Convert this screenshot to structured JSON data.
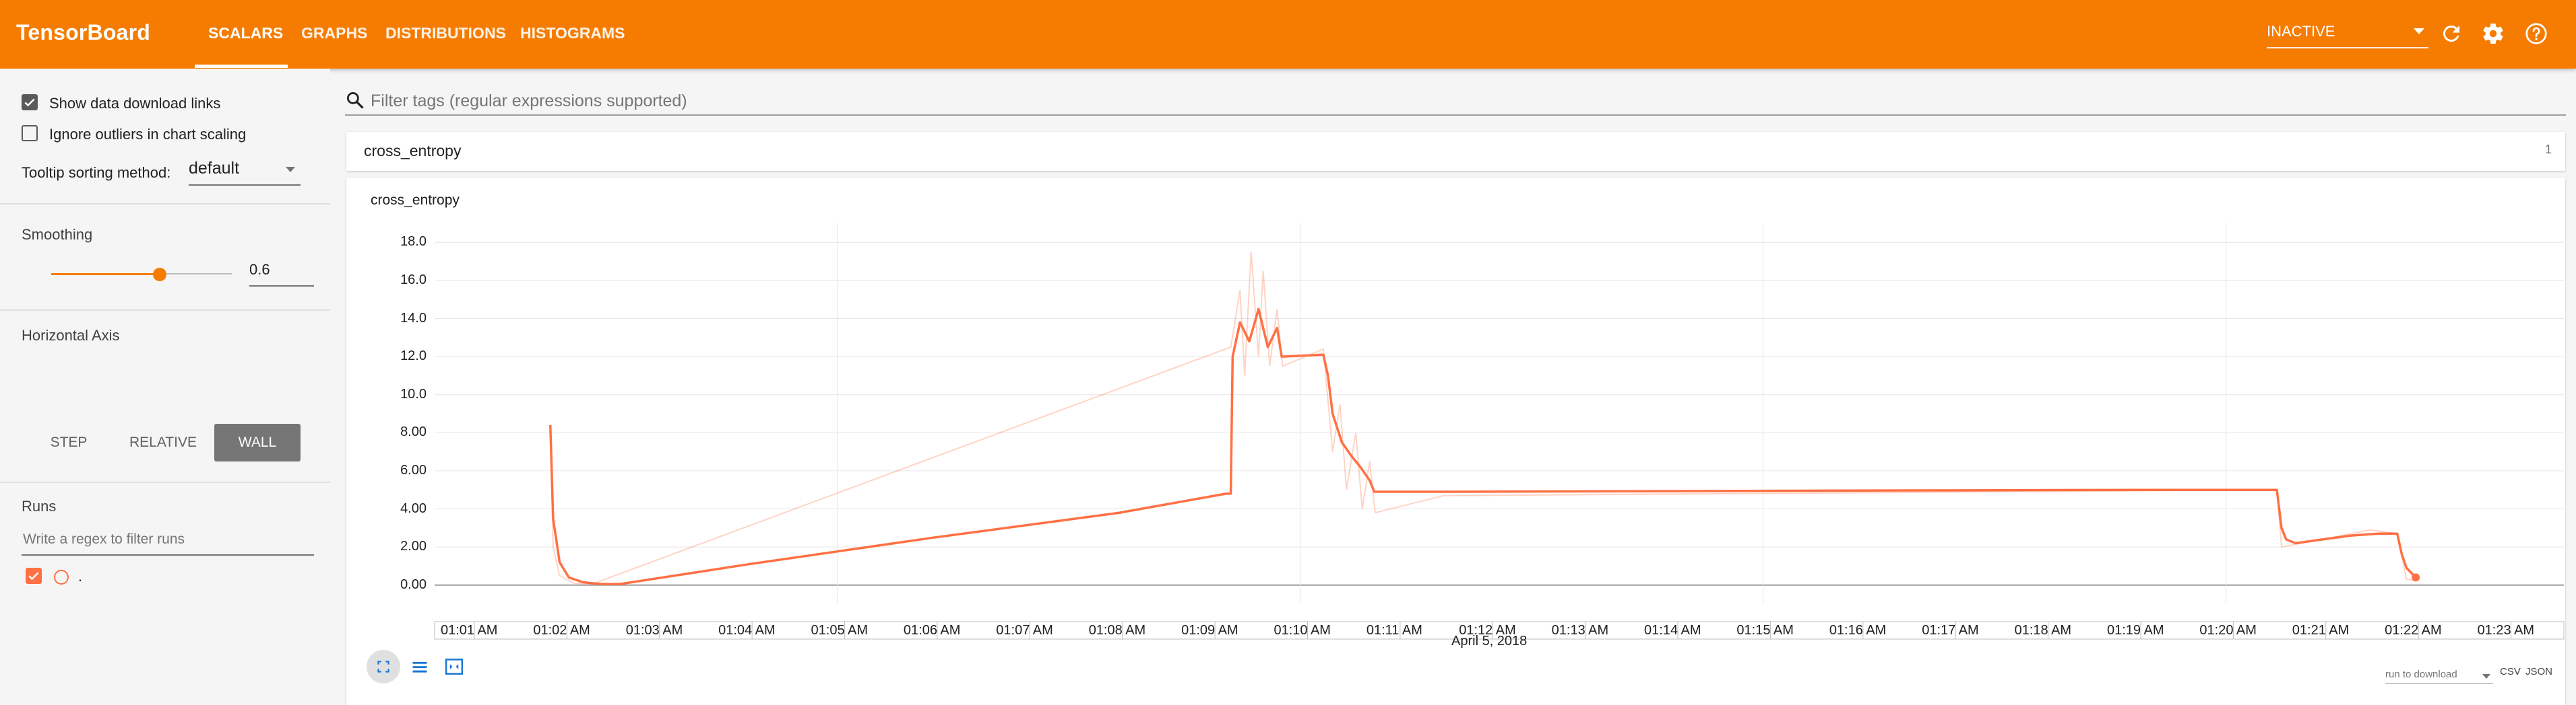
{
  "app": {
    "title": "TensorBoard",
    "tabs": [
      "SCALARS",
      "GRAPHS",
      "DISTRIBUTIONS",
      "HISTOGRAMS"
    ],
    "active_tab": "SCALARS",
    "run_status": "INACTIVE",
    "accent_color": "#f57c00"
  },
  "sidebar": {
    "show_download_links": {
      "label": "Show data download links",
      "checked": true
    },
    "ignore_outliers": {
      "label": "Ignore outliers in chart scaling",
      "checked": false
    },
    "tooltip_sorting": {
      "label": "Tooltip sorting method:",
      "value": "default"
    },
    "smoothing": {
      "title": "Smoothing",
      "value": "0.6",
      "fraction": 0.6
    },
    "horizontal_axis": {
      "title": "Horizontal Axis",
      "options": [
        "STEP",
        "RELATIVE",
        "WALL"
      ],
      "selected": "WALL"
    },
    "runs": {
      "title": "Runs",
      "filter_placeholder": "Write a regex to filter runs",
      "items": [
        {
          "name": ".",
          "checked": true,
          "color": "#ff7043"
        }
      ]
    }
  },
  "main": {
    "filter_placeholder": "Filter tags (regular expressions supported)",
    "category": {
      "name": "cross_entropy",
      "count": "1"
    },
    "card": {
      "title": "cross_entropy",
      "date_label": "April 5, 2018",
      "download": {
        "select_placeholder": "run to download",
        "csv": "CSV",
        "json": "JSON"
      }
    }
  },
  "chart_data": {
    "type": "line",
    "title": "cross_entropy",
    "xlabel": "April 5, 2018",
    "ylabel": "",
    "x_unit": "wall time (minutes after 01:00 AM)",
    "xlim": [
      0.6,
      23.6
    ],
    "ylim": [
      -1.0,
      19.0
    ],
    "x_tick_labels": [
      "01:01 AM",
      "01:02 AM",
      "01:03 AM",
      "01:04 AM",
      "01:05 AM",
      "01:06 AM",
      "01:07 AM",
      "01:08 AM",
      "01:09 AM",
      "01:10 AM",
      "01:11 AM",
      "01:12 AM",
      "01:13 AM",
      "01:14 AM",
      "01:15 AM",
      "01:16 AM",
      "01:17 AM",
      "01:18 AM",
      "01:19 AM",
      "01:20 AM",
      "01:21 AM",
      "01:22 AM",
      "01:23 AM"
    ],
    "x_tick_values": [
      1,
      2,
      3,
      4,
      5,
      6,
      7,
      8,
      9,
      10,
      11,
      12,
      13,
      14,
      15,
      16,
      17,
      18,
      19,
      20,
      21,
      22,
      23
    ],
    "y_tick_labels": [
      "0.00",
      "2.00",
      "4.00",
      "6.00",
      "8.00",
      "10.0",
      "12.0",
      "14.0",
      "16.0",
      "18.0"
    ],
    "y_tick_values": [
      0,
      2,
      4,
      6,
      8,
      10,
      12,
      14,
      16,
      18
    ],
    "grid": true,
    "series": [
      {
        "name": ".",
        "color": "#ff7043",
        "smoothed": [
          [
            1.85,
            8.4
          ],
          [
            1.88,
            3.5
          ],
          [
            1.95,
            1.2
          ],
          [
            2.05,
            0.4
          ],
          [
            2.2,
            0.15
          ],
          [
            2.4,
            0.05
          ],
          [
            2.6,
            0.05
          ],
          [
            4.0,
            1.1
          ],
          [
            6.0,
            2.5
          ],
          [
            8.0,
            3.8
          ],
          [
            9.15,
            4.8
          ],
          [
            9.2,
            4.8
          ],
          [
            9.22,
            12.0
          ],
          [
            9.3,
            13.8
          ],
          [
            9.4,
            12.8
          ],
          [
            9.5,
            14.5
          ],
          [
            9.6,
            12.5
          ],
          [
            9.7,
            13.5
          ],
          [
            9.75,
            12.0
          ],
          [
            10.2,
            12.1
          ],
          [
            10.25,
            11.0
          ],
          [
            10.3,
            9.0
          ],
          [
            10.4,
            7.5
          ],
          [
            10.5,
            6.8
          ],
          [
            10.6,
            6.2
          ],
          [
            10.7,
            5.5
          ],
          [
            10.75,
            4.9
          ],
          [
            11.5,
            4.9
          ],
          [
            15.0,
            4.95
          ],
          [
            19.0,
            5.0
          ],
          [
            20.5,
            5.0
          ],
          [
            20.55,
            3.0
          ],
          [
            20.6,
            2.4
          ],
          [
            20.7,
            2.2
          ],
          [
            21.0,
            2.4
          ],
          [
            21.3,
            2.6
          ],
          [
            21.6,
            2.7
          ],
          [
            21.8,
            2.7
          ],
          [
            21.85,
            1.6
          ],
          [
            21.9,
            0.9
          ],
          [
            22.0,
            0.4
          ]
        ],
        "raw": [
          [
            1.85,
            8.4
          ],
          [
            1.88,
            2.0
          ],
          [
            1.95,
            0.5
          ],
          [
            2.1,
            0.1
          ],
          [
            2.3,
            0.05
          ],
          [
            9.2,
            12.5
          ],
          [
            9.3,
            15.5
          ],
          [
            9.35,
            11.0
          ],
          [
            9.42,
            17.5
          ],
          [
            9.5,
            12.0
          ],
          [
            9.55,
            16.5
          ],
          [
            9.62,
            11.5
          ],
          [
            9.7,
            14.5
          ],
          [
            9.76,
            11.5
          ],
          [
            10.2,
            12.4
          ],
          [
            10.3,
            7.0
          ],
          [
            10.38,
            9.5
          ],
          [
            10.45,
            5.0
          ],
          [
            10.55,
            8.0
          ],
          [
            10.62,
            4.0
          ],
          [
            10.7,
            6.5
          ],
          [
            10.76,
            3.8
          ],
          [
            11.5,
            4.7
          ],
          [
            20.5,
            5.0
          ],
          [
            20.55,
            2.0
          ],
          [
            21.0,
            2.4
          ],
          [
            21.5,
            2.9
          ],
          [
            21.8,
            2.7
          ],
          [
            21.9,
            0.3
          ],
          [
            22.0,
            0.25
          ]
        ]
      }
    ]
  }
}
